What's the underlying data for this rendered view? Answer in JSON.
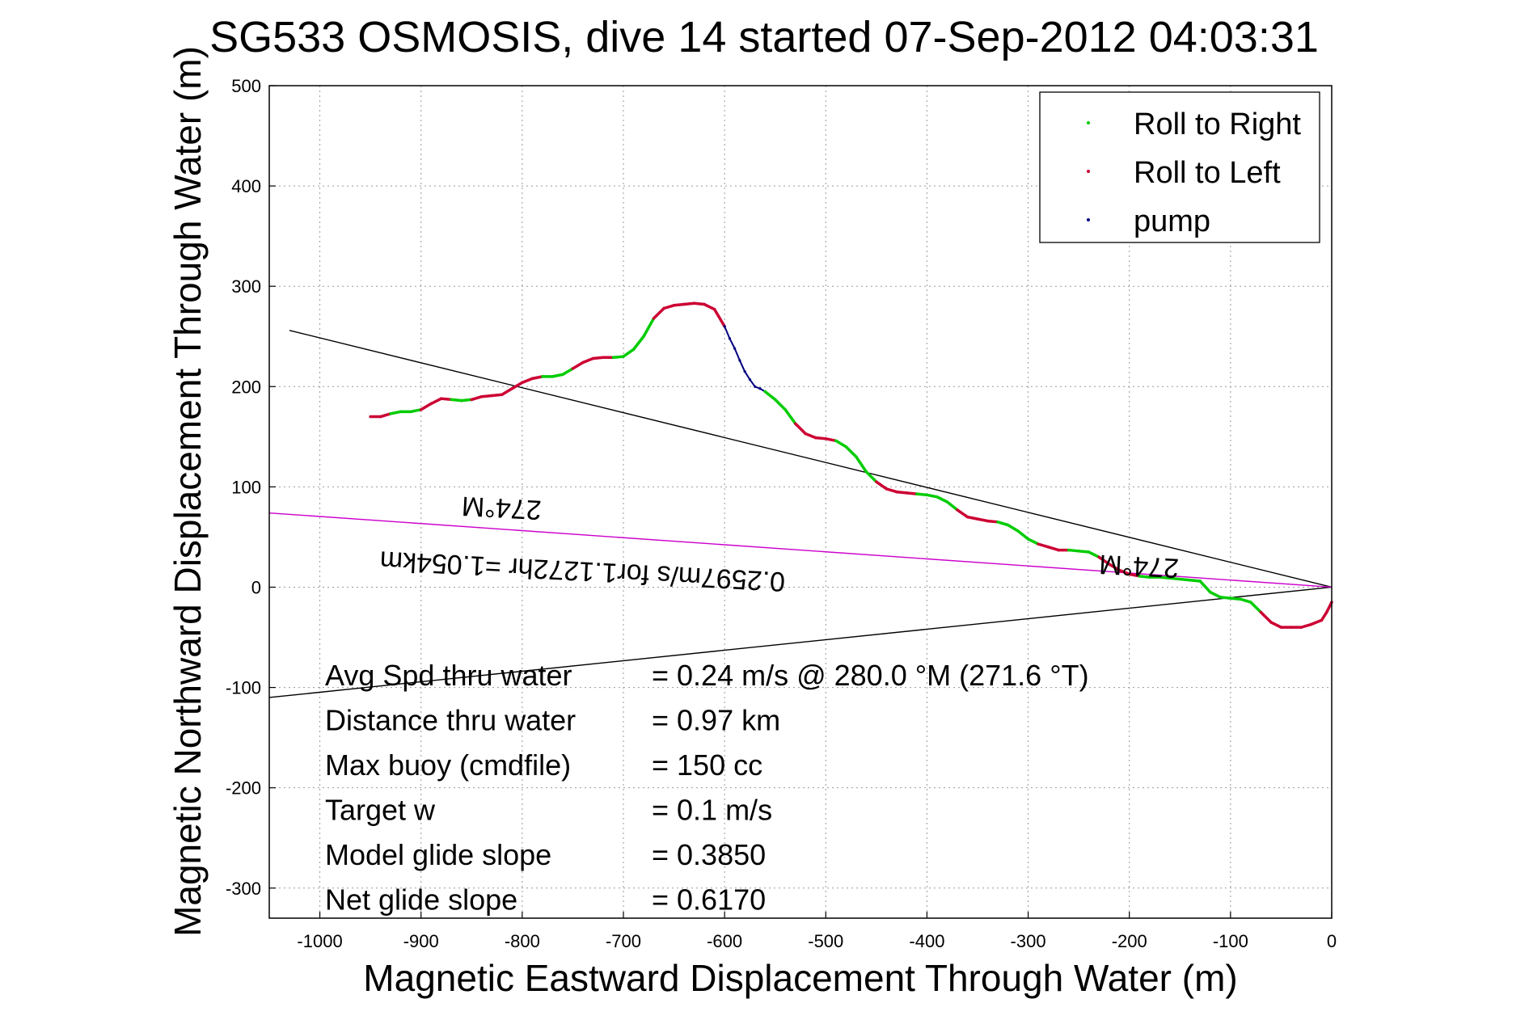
{
  "chart_data": {
    "type": "line",
    "title": "SG533 OSMOSIS, dive 14 started 07-Sep-2012 04:03:31",
    "xlabel": "Magnetic Eastward Displacement Through Water (m)",
    "ylabel": "Magnetic Northward Displacement Through Water (m)",
    "xlim": [
      -1050,
      0
    ],
    "ylim": [
      -330,
      500
    ],
    "xticks": [
      -1000,
      -900,
      -800,
      -700,
      -600,
      -500,
      -400,
      -300,
      -200,
      -100,
      0
    ],
    "yticks": [
      -300,
      -200,
      -100,
      0,
      100,
      200,
      300,
      400,
      500
    ],
    "grid": true,
    "legend_position": "top-right",
    "legend": [
      {
        "label": "Roll to Right",
        "color": "#00cc00"
      },
      {
        "label": "Roll to Left",
        "color": "#cc0033"
      },
      {
        "label": "pump",
        "color": "#000080"
      }
    ],
    "track": {
      "x": [
        -950,
        -940,
        -930,
        -920,
        -910,
        -900,
        -890,
        -880,
        -870,
        -860,
        -850,
        -840,
        -830,
        -820,
        -810,
        -800,
        -790,
        -780,
        -770,
        -760,
        -750,
        -740,
        -730,
        -720,
        -710,
        -700,
        -690,
        -680,
        -670,
        -660,
        -650,
        -640,
        -630,
        -620,
        -610,
        -600,
        -595,
        -590,
        -585,
        -580,
        -575,
        -570,
        -565,
        -560,
        -550,
        -540,
        -530,
        -520,
        -510,
        -500,
        -490,
        -480,
        -470,
        -460,
        -450,
        -440,
        -430,
        -420,
        -410,
        -400,
        -390,
        -380,
        -370,
        -360,
        -350,
        -340,
        -330,
        -320,
        -310,
        -300,
        -290,
        -280,
        -270,
        -260,
        -250,
        -240,
        -230,
        -220,
        -210,
        -200,
        -190,
        -180,
        -170,
        -160,
        -150,
        -140,
        -130,
        -120,
        -110,
        -100,
        -90,
        -80,
        -70,
        -60,
        -50,
        -40,
        -30,
        -20,
        -10,
        -5,
        0
      ],
      "y": [
        170,
        170,
        173,
        175,
        175,
        177,
        183,
        188,
        187,
        186,
        187,
        190,
        191,
        192,
        198,
        204,
        208,
        210,
        210,
        212,
        218,
        224,
        228,
        229,
        229,
        230,
        237,
        250,
        268,
        278,
        281,
        282,
        283,
        282,
        277,
        260,
        248,
        238,
        226,
        215,
        207,
        200,
        198,
        195,
        187,
        177,
        163,
        153,
        149,
        148,
        146,
        140,
        130,
        115,
        105,
        98,
        95,
        94,
        93,
        92,
        90,
        85,
        77,
        70,
        68,
        66,
        65,
        62,
        56,
        48,
        43,
        40,
        37,
        37,
        36,
        35,
        30,
        23,
        17,
        13,
        11,
        10,
        10,
        9,
        8,
        7,
        6,
        -5,
        -10,
        -11,
        -12,
        -15,
        -25,
        -35,
        -40,
        -40,
        -40,
        -37,
        -33,
        -25,
        -15
      ],
      "seg_colors": [
        "#cc0033",
        "#cc0033",
        "#00cc00",
        "#00cc00",
        "#00cc00",
        "#cc0033",
        "#cc0033",
        "#cc0033",
        "#00cc00",
        "#00cc00",
        "#cc0033",
        "#cc0033",
        "#cc0033",
        "#cc0033",
        "#cc0033",
        "#cc0033",
        "#cc0033",
        "#00cc00",
        "#00cc00",
        "#00cc00",
        "#cc0033",
        "#cc0033",
        "#cc0033",
        "#cc0033",
        "#00cc00",
        "#00cc00",
        "#00cc00",
        "#00cc00",
        "#cc0033",
        "#cc0033",
        "#cc0033",
        "#cc0033",
        "#cc0033",
        "#cc0033",
        "#cc0033",
        "#000080",
        "#000080",
        "#000080",
        "#000080",
        "#000080",
        "#000080",
        "#000080",
        "#000080",
        "#00cc00",
        "#00cc00",
        "#00cc00",
        "#cc0033",
        "#cc0033",
        "#cc0033",
        "#cc0033",
        "#00cc00",
        "#00cc00",
        "#00cc00",
        "#00cc00",
        "#cc0033",
        "#cc0033",
        "#cc0033",
        "#cc0033",
        "#00cc00",
        "#00cc00",
        "#00cc00",
        "#00cc00",
        "#cc0033",
        "#cc0033",
        "#cc0033",
        "#cc0033",
        "#00cc00",
        "#00cc00",
        "#00cc00",
        "#00cc00",
        "#cc0033",
        "#cc0033",
        "#cc0033",
        "#00cc00",
        "#00cc00",
        "#00cc00",
        "#cc0033",
        "#cc0033",
        "#cc0033",
        "#cc0033",
        "#00cc00",
        "#00cc00",
        "#00cc00",
        "#00cc00",
        "#00cc00",
        "#00cc00",
        "#00cc00",
        "#00cc00",
        "#00cc00",
        "#00cc00",
        "#00cc00",
        "#00cc00",
        "#cc0033",
        "#cc0033",
        "#cc0033",
        "#cc0033",
        "#cc0033",
        "#cc0033",
        "#cc0033",
        "#cc0033"
      ]
    },
    "ref_lines": [
      {
        "name": "upper-heading-line",
        "color": "#000000",
        "x": [
          -1030,
          0
        ],
        "y": [
          256,
          0
        ]
      },
      {
        "name": "lower-heading-line",
        "color": "#000000",
        "x": [
          -1050,
          0
        ],
        "y": [
          -110,
          0
        ]
      },
      {
        "name": "magenta-heading-line",
        "color": "#cc00cc",
        "x": [
          -1050,
          0
        ],
        "y": [
          74,
          0
        ]
      }
    ],
    "annotations": [
      {
        "text": "274°M",
        "x": -820,
        "y": 88
      },
      {
        "text": "274°M",
        "x": -190,
        "y": 30
      },
      {
        "text": "0.2597m/s for1.1272hr =1.054km",
        "x": -740,
        "y": 25
      }
    ],
    "stats": [
      {
        "label": "Avg Spd thru water",
        "value": "=  0.24 m/s @ 280.0 °M (271.6 °T)"
      },
      {
        "label": "Distance thru water",
        "value": "=  0.97 km"
      },
      {
        "label": "Max buoy (cmdfile)",
        "value": "= 150 cc"
      },
      {
        "label": "Target w",
        "value": "= 0.1 m/s"
      },
      {
        "label": "Model glide slope",
        "value": "= 0.3850"
      },
      {
        "label": "Net glide slope",
        "value": "= 0.6170"
      }
    ]
  }
}
